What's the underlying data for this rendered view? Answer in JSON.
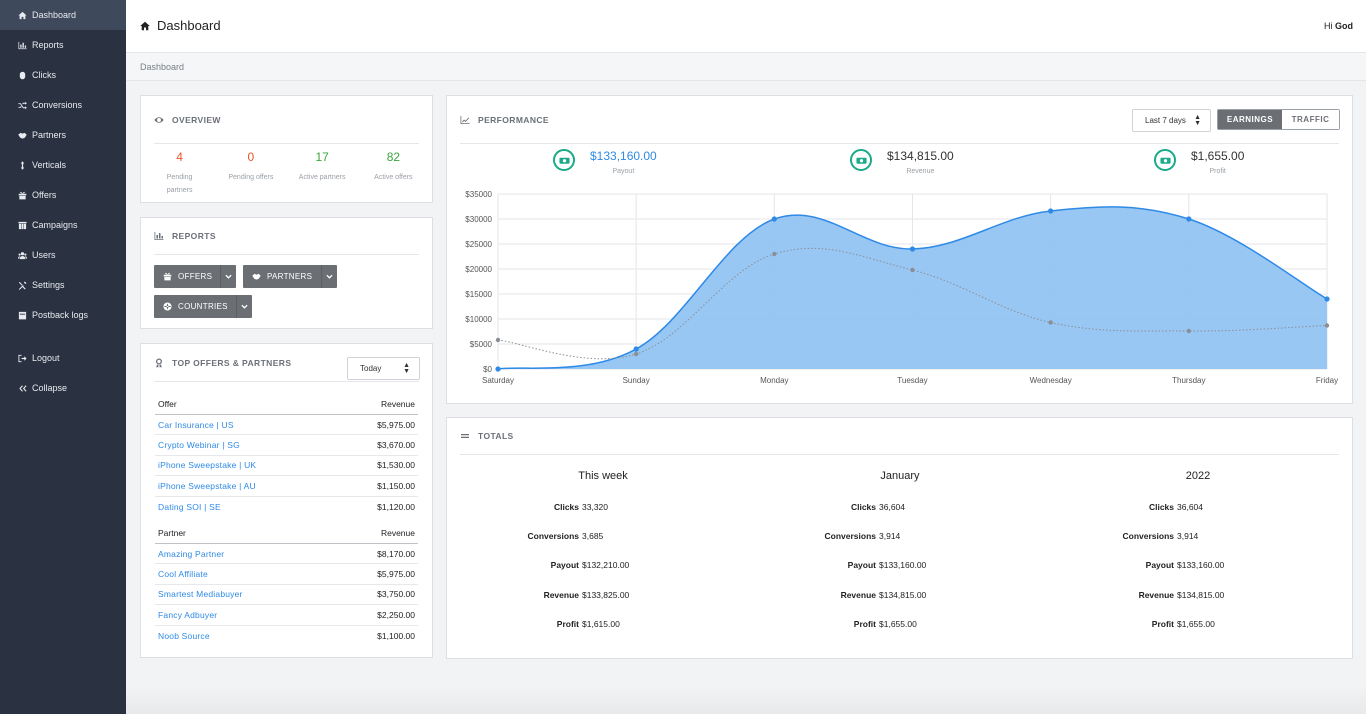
{
  "sidebar": {
    "items": [
      {
        "label": "Dashboard",
        "icon": "home-icon"
      },
      {
        "label": "Reports",
        "icon": "bar-chart-icon"
      },
      {
        "label": "Clicks",
        "icon": "mouse-icon"
      },
      {
        "label": "Conversions",
        "icon": "shuffle-icon"
      },
      {
        "label": "Partners",
        "icon": "handshake-icon"
      },
      {
        "label": "Verticals",
        "icon": "vertical-arrows-icon"
      },
      {
        "label": "Offers",
        "icon": "gift-icon"
      },
      {
        "label": "Campaigns",
        "icon": "columns-icon"
      },
      {
        "label": "Users",
        "icon": "users-icon"
      },
      {
        "label": "Settings",
        "icon": "tools-icon"
      },
      {
        "label": "Postback logs",
        "icon": "clipboard-icon"
      }
    ],
    "logout": "Logout",
    "collapse": "Collapse"
  },
  "header": {
    "title": "Dashboard",
    "greeting_prefix": "Hi",
    "user": "God"
  },
  "breadcrumb": "Dashboard",
  "overview": {
    "title": "OVERVIEW",
    "stats": [
      {
        "value": "4",
        "label": "Pending partners",
        "color": "#e8562a"
      },
      {
        "value": "0",
        "label": "Pending offers",
        "color": "#e8562a"
      },
      {
        "value": "17",
        "label": "Active partners",
        "color": "#3aa63a"
      },
      {
        "value": "82",
        "label": "Active offers",
        "color": "#3aa63a"
      }
    ]
  },
  "reports": {
    "title": "REPORTS",
    "buttons": {
      "offers": "OFFERS",
      "partners": "PARTNERS",
      "countries": "COUNTRIES"
    }
  },
  "top": {
    "title": "TOP OFFERS & PARTNERS",
    "range": "Today",
    "offers_header": {
      "name": "Offer",
      "revenue": "Revenue"
    },
    "offers": [
      {
        "name": "Car Insurance | US",
        "revenue": "$5,975.00"
      },
      {
        "name": "Crypto Webinar | SG",
        "revenue": "$3,670.00"
      },
      {
        "name": "iPhone Sweepstake | UK",
        "revenue": "$1,530.00"
      },
      {
        "name": "iPhone Sweepstake | AU",
        "revenue": "$1,150.00"
      },
      {
        "name": "Dating SOI | SE",
        "revenue": "$1,120.00"
      }
    ],
    "partners_header": {
      "name": "Partner",
      "revenue": "Revenue"
    },
    "partners": [
      {
        "name": "Amazing Partner",
        "revenue": "$8,170.00"
      },
      {
        "name": "Cool Affiliate",
        "revenue": "$5,975.00"
      },
      {
        "name": "Smartest Mediabuyer",
        "revenue": "$3,750.00"
      },
      {
        "name": "Fancy Adbuyer",
        "revenue": "$2,250.00"
      },
      {
        "name": "Noob Source",
        "revenue": "$1,100.00"
      }
    ]
  },
  "performance": {
    "title": "PERFORMANCE",
    "range": "Last 7 days",
    "toggle": {
      "earnings": "EARNINGS",
      "traffic": "TRAFFIC",
      "active": "earnings"
    },
    "kpis": [
      {
        "value": "$133,160.00",
        "label": "Payout",
        "color": "#2e8ae6"
      },
      {
        "value": "$134,815.00",
        "label": "Revenue",
        "color": "#222222"
      },
      {
        "value": "$1,655.00",
        "label": "Profit",
        "color": "#222222"
      }
    ]
  },
  "chart_data": {
    "type": "area",
    "x": [
      "Saturday",
      "Sunday",
      "Monday",
      "Tuesday",
      "Wednesday",
      "Thursday",
      "Friday"
    ],
    "ylim": [
      0,
      35000
    ],
    "yticks": [
      "$0",
      "$5000",
      "$10000",
      "$15000",
      "$20000",
      "$25000",
      "$30000",
      "$35000"
    ],
    "series": [
      {
        "values": [
          0,
          4000,
          30000,
          24000,
          31600,
          30000,
          14000
        ],
        "color": "#2e8ae6",
        "fill": "#93c4f2",
        "style": "solid-area"
      },
      {
        "values": [
          5800,
          3000,
          23000,
          19800,
          9300,
          7600,
          8700
        ],
        "color": "#8a8f96",
        "style": "dotted"
      }
    ],
    "grid": true
  },
  "totals": {
    "title": "TOTALS",
    "row_labels": [
      "Clicks",
      "Conversions",
      "Payout",
      "Revenue",
      "Profit"
    ],
    "columns": [
      {
        "heading": "This week",
        "values": [
          "33,320",
          "3,685",
          "$132,210.00",
          "$133,825.00",
          "$1,615.00"
        ]
      },
      {
        "heading": "January",
        "values": [
          "36,604",
          "3,914",
          "$133,160.00",
          "$134,815.00",
          "$1,655.00"
        ]
      },
      {
        "heading": "2022",
        "values": [
          "36,604",
          "3,914",
          "$133,160.00",
          "$134,815.00",
          "$1,655.00"
        ]
      }
    ]
  }
}
